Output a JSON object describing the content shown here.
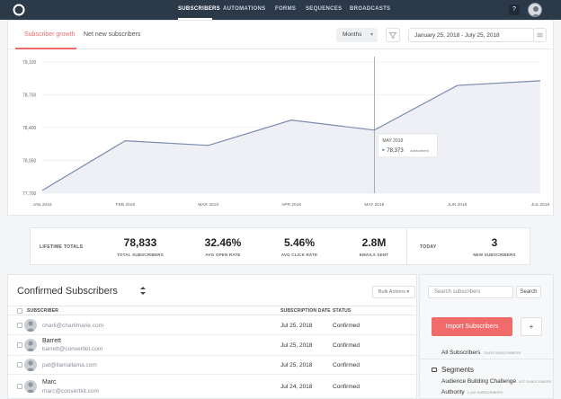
{
  "nav": {
    "logo_icon": "convertkit-logo-icon",
    "items": [
      {
        "label": "SUBSCRIBERS",
        "active": true
      },
      {
        "label": "AUTOMATIONS",
        "active": false
      },
      {
        "label": "FORMS",
        "active": false
      },
      {
        "label": "SEQUENCES",
        "active": false
      },
      {
        "label": "BROADCASTS",
        "active": false
      }
    ],
    "help_label": "?",
    "colors": {
      "bar": "#2b3949",
      "accent": "#ef6b6b"
    }
  },
  "chart_panel": {
    "tabs": [
      {
        "label": "Subscriber growth",
        "active": true
      },
      {
        "label": "Net new subscribers",
        "active": false
      }
    ],
    "period_select": "Months",
    "date_range": "January 25, 2018  -  July 25, 2018",
    "tooltip": {
      "month": "MAY 2018",
      "value": "78,373",
      "suffix": "subscribers"
    }
  },
  "chart_data": {
    "type": "line",
    "x": [
      "JAN 2018",
      "FEB 2018",
      "MAR 2018",
      "APR 2018",
      "MAY 2018",
      "JUN 2018",
      "JUL 2018"
    ],
    "y_ticks": [
      "77,700",
      "78,050",
      "78,400",
      "78,750",
      "79,100"
    ],
    "ylim": [
      77700,
      79100
    ],
    "series": [
      {
        "values": [
          77730,
          78260,
          78210,
          78480,
          78373,
          78850,
          78900
        ]
      }
    ],
    "grid": true,
    "line_color": "#7b8bae",
    "fill_color": "#eef0f5"
  },
  "stats": {
    "section_label": "LIFETIME TOTALS",
    "items": [
      {
        "value": "78,833",
        "label": "TOTAL SUBSCRIBERS"
      },
      {
        "value": "32.46%",
        "label": "AVG OPEN RATE"
      },
      {
        "value": "5.46%",
        "label": "AVG CLICK RATE"
      },
      {
        "value": "2.8M",
        "label": "EMAILS SENT"
      }
    ],
    "today_label": "TODAY",
    "today": {
      "value": "3",
      "label": "NEW SUBSCRIBERS"
    }
  },
  "subscribers": {
    "title": "Confirmed Subscribers",
    "sort_icon": "up-down-arrows-icon",
    "bulk_actions": "Bulk Actions ▾",
    "columns": [
      "SUBSCRIBER",
      "SUBSCRIPTION DATE",
      "STATUS"
    ],
    "rows": [
      {
        "name": "",
        "email": "charli@charlimarie.com",
        "date": "Jul 25, 2018",
        "status": "Confirmed"
      },
      {
        "name": "Barrett",
        "email": "barrett@convertkit.com",
        "date": "Jul 25, 2018",
        "status": "Confirmed"
      },
      {
        "name": "",
        "email": "pat@llamallama.com",
        "date": "Jul 25, 2018",
        "status": "Confirmed"
      },
      {
        "name": "Marc",
        "email": "marc@convertkit.com",
        "date": "Jul 24, 2018",
        "status": "Confirmed"
      }
    ]
  },
  "sidebar": {
    "search_placeholder": "Search subscribers",
    "search_button": "Search",
    "import_button": "Import Subscribers",
    "plus_button": "+",
    "all_subscribers": {
      "label": "All Subscribers",
      "count": "78,833 SUBSCRIBERS"
    },
    "segments_title": "Segments",
    "segments": [
      {
        "label": "Audience Building Challenge",
        "count": "837 SUBSCRIBERS"
      },
      {
        "label": "Authority",
        "count": "2,100 SUBSCRIBERS"
      }
    ]
  }
}
